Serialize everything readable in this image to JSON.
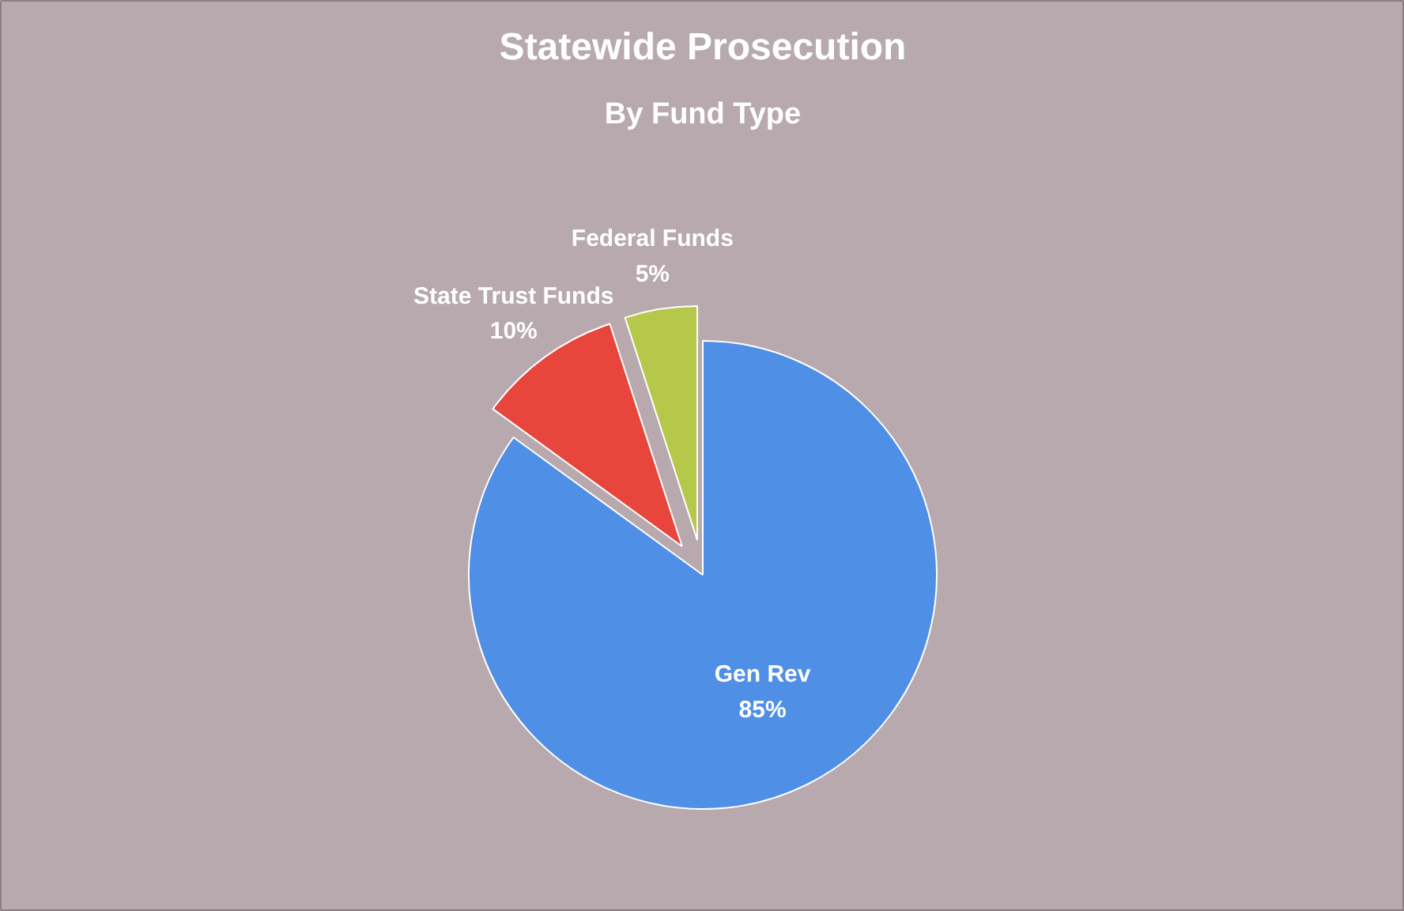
{
  "chart_data": {
    "type": "pie",
    "title": "Statewide Prosecution",
    "subtitle": "By Fund Type",
    "categories": [
      "Gen Rev",
      "State Trust Funds",
      "Federal Funds"
    ],
    "values": [
      85,
      10,
      5
    ],
    "colors": [
      "#4f8fe6",
      "#e8453c",
      "#b5c84a"
    ],
    "value_labels": [
      "85%",
      "10%",
      "5%"
    ]
  }
}
